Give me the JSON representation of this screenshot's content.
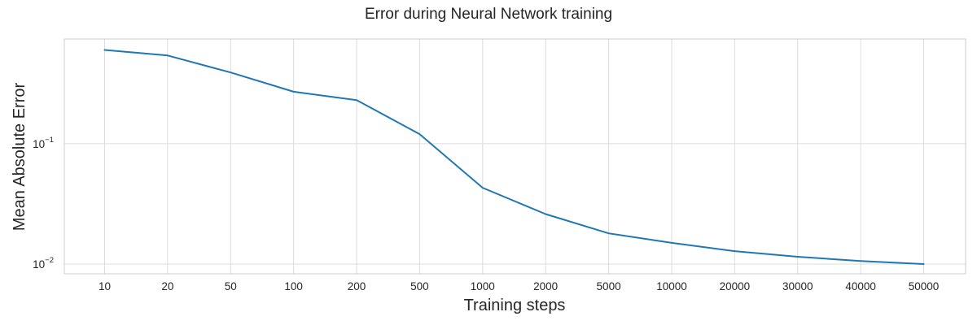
{
  "chart_data": {
    "type": "line",
    "title": "Error during Neural Network training",
    "xlabel": "Training steps",
    "ylabel": "Mean Absolute Error",
    "categories": [
      "10",
      "20",
      "50",
      "100",
      "200",
      "500",
      "1000",
      "2000",
      "5000",
      "10000",
      "20000",
      "30000",
      "40000",
      "50000"
    ],
    "series": [
      {
        "values": [
          0.6,
          0.54,
          0.39,
          0.27,
          0.23,
          0.12,
          0.043,
          0.026,
          0.018,
          0.015,
          0.0128,
          0.0115,
          0.0106,
          0.01
        ],
        "color": "#1f77b4"
      }
    ],
    "yscale": "log",
    "ylim": [
      0.0083,
      0.74
    ],
    "yticks": [
      {
        "value": 0.1,
        "base": "10",
        "exp": "−1"
      },
      {
        "value": 0.01,
        "base": "10",
        "exp": "−2"
      }
    ],
    "grid": true,
    "style": "seaborn-whitegrid"
  }
}
